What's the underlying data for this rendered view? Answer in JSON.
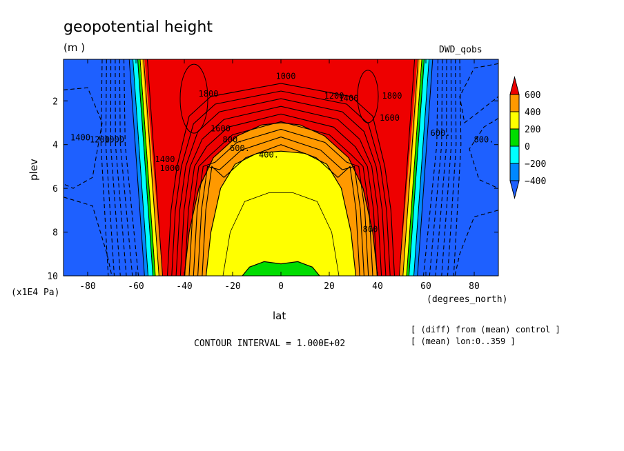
{
  "chart_data": {
    "type": "heatmap",
    "title": "geopotential height",
    "units": "(m )",
    "dataset": "DWD_qobs",
    "xlabel": "lat",
    "ylabel": "plev",
    "x_units": "(degrees_north)",
    "y_units": "(x1E4 Pa)",
    "xlim": [
      -90,
      90
    ],
    "ylim": [
      10,
      0.1
    ],
    "x_ticks": [
      -80,
      -60,
      -40,
      -20,
      0,
      20,
      40,
      60,
      80
    ],
    "y_ticks": [
      2,
      4,
      6,
      8,
      10
    ],
    "x_tick_labels": [
      "-80",
      "-60",
      "-40",
      "-20",
      "0",
      "20",
      "40",
      "60",
      "80"
    ],
    "y_tick_labels": [
      "2",
      "4",
      "6",
      "8",
      "10"
    ],
    "colorbar": {
      "levels": [
        600,
        400,
        200,
        0,
        -200,
        -400
      ],
      "labels": [
        "600",
        "400",
        "200",
        "0",
        "−200",
        "−400"
      ],
      "colors": [
        "#ee0000",
        "#ff9900",
        "#ffff00",
        "#00dd00",
        "#00ffff",
        "#0088ff",
        "#1e60ff"
      ]
    },
    "contour_interval": "CONTOUR INTERVAL = 1.000E+02",
    "notes": [
      "[ (diff) from (mean) control ]",
      "[ (mean) lon:0..359 ]"
    ],
    "contour_labels": [
      {
        "text": "1000",
        "lat": 2,
        "plev": 1.0
      },
      {
        "text": "1800",
        "lat": -30,
        "plev": 1.8
      },
      {
        "text": "1200",
        "lat": 22,
        "plev": 1.9
      },
      {
        "text": "1400",
        "lat": 28,
        "plev": 2.0
      },
      {
        "text": "1800",
        "lat": 46,
        "plev": 1.9
      },
      {
        "text": "1600",
        "lat": 45,
        "plev": 2.9
      },
      {
        "text": "1600",
        "lat": -25,
        "plev": 3.4
      },
      {
        "text": "800.",
        "lat": -20,
        "plev": 3.9
      },
      {
        "text": "600.",
        "lat": -17,
        "plev": 4.3
      },
      {
        "text": "400.",
        "lat": -5,
        "plev": 4.6
      },
      {
        "text": "1400",
        "lat": -48,
        "plev": 4.8
      },
      {
        "text": "1000",
        "lat": -46,
        "plev": 5.2
      },
      {
        "text": "800",
        "lat": 37,
        "plev": 8.0
      },
      {
        "text": "1400",
        "lat": -83,
        "plev": 3.8
      },
      {
        "text": "1200",
        "lat": -75,
        "plev": 3.9
      },
      {
        "text": "1000",
        "lat": -69,
        "plev": 3.9
      },
      {
        "text": "800.",
        "lat": 84,
        "plev": 3.9
      },
      {
        "text": "600.",
        "lat": 66,
        "plev": 3.6
      }
    ],
    "regions": {
      "outer": -400,
      "wall_cyan": -200,
      "wall_green": 0,
      "wall_yellow": 200,
      "wall_orange": 400,
      "core": 600,
      "core_orange_min": 400,
      "core_yellow_min": 200,
      "core_green_min": 0
    }
  }
}
